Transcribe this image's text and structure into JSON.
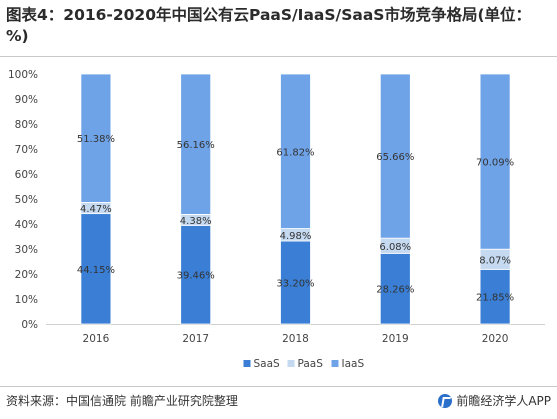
{
  "title": "图表4：2016-2020年中国公有云PaaS/IaaS/SaaS市场竞争格局(单位：%)",
  "footer": {
    "source": "资料来源：中国信通院 前瞻产业研究院整理",
    "brand": "前瞻经济学人APP"
  },
  "colors": {
    "SaaS": "#3a7fd5",
    "PaaS": "#c5d9f1",
    "IaaS": "#6fa3e8"
  },
  "chart_data": {
    "type": "bar",
    "stacked": true,
    "percent": true,
    "categories": [
      "2016",
      "2017",
      "2018",
      "2019",
      "2020"
    ],
    "series": [
      {
        "name": "SaaS",
        "values": [
          44.15,
          39.46,
          33.2,
          28.26,
          21.85
        ]
      },
      {
        "name": "PaaS",
        "values": [
          4.47,
          4.38,
          4.98,
          6.08,
          8.07
        ]
      },
      {
        "name": "IaaS",
        "values": [
          51.38,
          56.16,
          61.82,
          65.66,
          70.09
        ]
      }
    ],
    "data_labels": [
      [
        "44.15%",
        "39.46%",
        "33.20%",
        "28.26%",
        "21.85%"
      ],
      [
        "4.47%",
        "4.38%",
        "4.98%",
        "6.08%",
        "8.07%"
      ],
      [
        "51.38%",
        "56.16%",
        "61.82%",
        "65.66%",
        "70.09%"
      ]
    ],
    "y_ticks": [
      "0%",
      "10%",
      "20%",
      "30%",
      "40%",
      "50%",
      "60%",
      "70%",
      "80%",
      "90%",
      "100%"
    ],
    "ylim": [
      0,
      100
    ],
    "legend_position": "bottom",
    "grid": false
  }
}
